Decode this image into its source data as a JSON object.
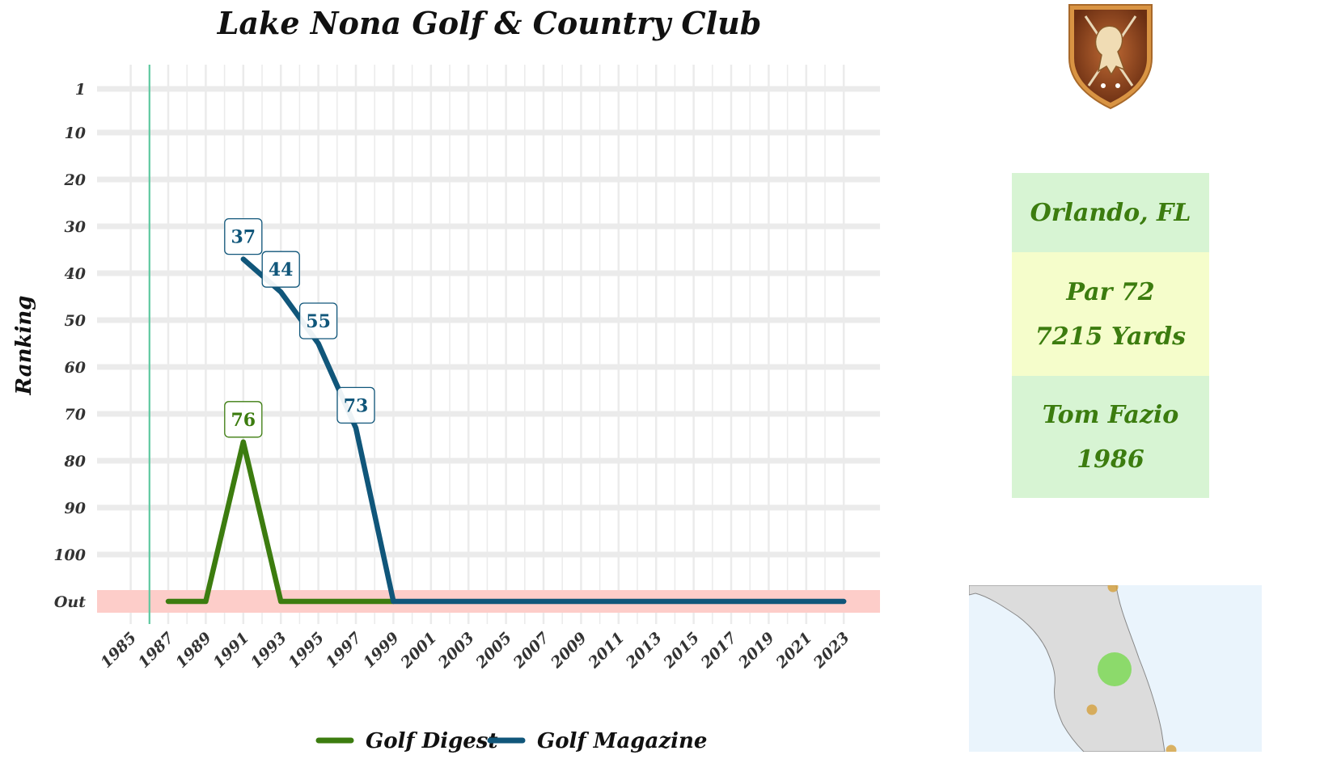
{
  "page": {
    "title": "Lake Nona Golf & Country Club"
  },
  "chart_data": {
    "type": "line",
    "title": "Lake Nona Golf & Country Club",
    "xlabel": "",
    "ylabel": "Ranking",
    "x_ticks": [
      "1985",
      "1987",
      "1989",
      "1991",
      "1993",
      "1995",
      "1997",
      "1999",
      "2001",
      "2003",
      "2005",
      "2007",
      "2009",
      "2011",
      "2013",
      "2015",
      "2017",
      "2019",
      "2021",
      "2023"
    ],
    "y_ticks": [
      "1",
      "10",
      "20",
      "30",
      "40",
      "50",
      "60",
      "70",
      "80",
      "90",
      "100",
      "Out"
    ],
    "ylim": [
      1,
      110
    ],
    "y_inverted": true,
    "out_value": 110,
    "out_band_color": "#fdcdc9",
    "reference_line": {
      "year": 1986,
      "color": "#5fc8a0"
    },
    "legend_position": "bottom",
    "series": [
      {
        "name": "Golf Digest",
        "color": "#3c7c0f",
        "points": [
          [
            1987,
            110
          ],
          [
            1989,
            110
          ],
          [
            1991,
            76
          ],
          [
            1993,
            110
          ],
          [
            1995,
            110
          ],
          [
            1997,
            110
          ],
          [
            1999,
            110
          ]
        ],
        "labels": [
          {
            "x": 1991,
            "value": "76"
          }
        ]
      },
      {
        "name": "Golf Magazine",
        "color": "#10567a",
        "points": [
          [
            1991,
            37
          ],
          [
            1993,
            44
          ],
          [
            1995,
            55
          ],
          [
            1997,
            73
          ],
          [
            1999,
            110
          ],
          [
            2001,
            110
          ],
          [
            2003,
            110
          ],
          [
            2005,
            110
          ],
          [
            2007,
            110
          ],
          [
            2009,
            110
          ],
          [
            2011,
            110
          ],
          [
            2013,
            110
          ],
          [
            2015,
            110
          ],
          [
            2017,
            110
          ],
          [
            2019,
            110
          ],
          [
            2021,
            110
          ],
          [
            2023,
            110
          ]
        ],
        "labels": [
          {
            "x": 1991,
            "value": "37"
          },
          {
            "x": 1993,
            "value": "44"
          },
          {
            "x": 1995,
            "value": "55"
          },
          {
            "x": 1997,
            "value": "73"
          }
        ]
      }
    ]
  },
  "info_panel": {
    "location": "Orlando, FL",
    "par": "Par 72",
    "yardage": "7215 Yards",
    "designer": "Tom Fazio",
    "year": "1986",
    "colors": {
      "text": "#3c7c0f",
      "green_box": "#d7f4d3",
      "yellow_box": "#f5fdcb"
    }
  },
  "logo": {
    "icon": "lion-crest-shield-icon"
  },
  "map": {
    "icon": "florida-map-icon",
    "highlight_color": "#7ed957",
    "other_color": "#d4a03c"
  }
}
